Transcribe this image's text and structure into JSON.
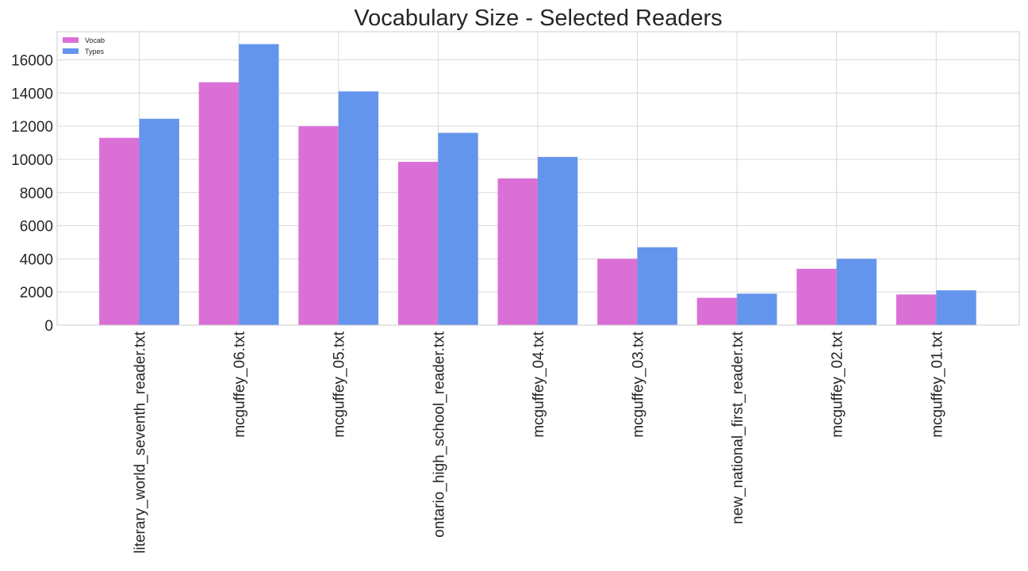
{
  "chart_data": {
    "type": "bar",
    "title": "Vocabulary Size - Selected Readers",
    "xlabel": "",
    "ylabel": "",
    "categories": [
      "literary_world_seventh_reader.txt",
      "mcguffey_06.txt",
      "mcguffey_05.txt",
      "ontario_high_school_reader.txt",
      "mcguffey_04.txt",
      "mcguffey_03.txt",
      "new_national_first_reader.txt",
      "mcguffey_02.txt",
      "mcguffey_01.txt"
    ],
    "series": [
      {
        "name": "Vocab",
        "color": "#da70d6",
        "values": [
          11300,
          14650,
          12000,
          9850,
          8850,
          4000,
          1650,
          3400,
          1850
        ]
      },
      {
        "name": "Types",
        "color": "#6495ed",
        "values": [
          12450,
          16950,
          14100,
          11600,
          10150,
          4700,
          1900,
          4000,
          2100
        ]
      }
    ],
    "ylim": [
      0,
      17700
    ],
    "yticks": [
      0,
      2000,
      4000,
      6000,
      8000,
      10000,
      12000,
      14000,
      16000
    ],
    "grid": true,
    "legend_position": "top-left"
  }
}
